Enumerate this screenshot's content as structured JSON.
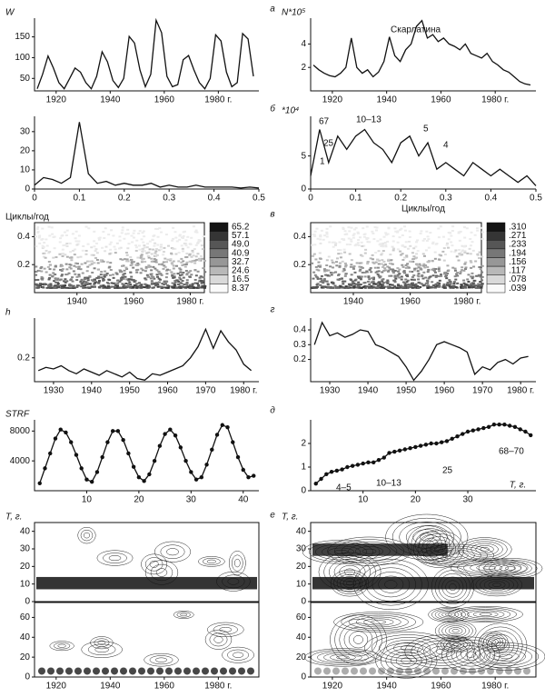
{
  "panel_labels": [
    "а",
    "б",
    "в",
    "г",
    "д",
    "е"
  ],
  "chart_data": [
    {
      "type": "line",
      "ylabel": "W",
      "x": [
        1913,
        1915,
        1917,
        1919,
        1921,
        1923,
        1925,
        1927,
        1929,
        1931,
        1933,
        1935,
        1937,
        1939,
        1941,
        1943,
        1945,
        1947,
        1949,
        1951,
        1953,
        1955,
        1957,
        1959,
        1961,
        1963,
        1965,
        1967,
        1969,
        1971,
        1973,
        1975,
        1977,
        1979,
        1981,
        1983,
        1985,
        1987,
        1989,
        1991,
        1993
      ],
      "values": [
        25,
        60,
        104,
        75,
        40,
        25,
        50,
        75,
        65,
        40,
        25,
        55,
        114,
        90,
        45,
        28,
        50,
        151,
        135,
        70,
        30,
        60,
        190,
        160,
        55,
        30,
        35,
        95,
        105,
        70,
        40,
        25,
        50,
        155,
        140,
        65,
        30,
        40,
        158,
        145,
        55
      ],
      "xlim": [
        1912,
        1995
      ],
      "ylim": [
        20,
        195
      ],
      "xticks": [
        1920,
        1940,
        1960,
        {
          "value": 1980,
          "label": "1980 г."
        }
      ],
      "yticks": [
        50,
        100,
        150
      ],
      "color": "#111"
    },
    {
      "type": "line",
      "ylabel": "N*10⁵",
      "title": "Скарлатина",
      "x": [
        1913,
        1915,
        1917,
        1919,
        1921,
        1923,
        1925,
        1927,
        1929,
        1931,
        1933,
        1935,
        1937,
        1939,
        1941,
        1943,
        1945,
        1947,
        1949,
        1951,
        1953,
        1955,
        1957,
        1959,
        1961,
        1963,
        1965,
        1967,
        1969,
        1971,
        1973,
        1975,
        1977,
        1979,
        1981,
        1983,
        1985,
        1987,
        1989,
        1991,
        1993
      ],
      "values": [
        2.2,
        1.8,
        1.5,
        1.3,
        1.2,
        1.5,
        2.0,
        4.5,
        2.0,
        1.5,
        1.8,
        1.2,
        1.6,
        2.5,
        4.6,
        3.0,
        2.5,
        3.5,
        4.0,
        5.5,
        6.0,
        4.5,
        4.8,
        4.2,
        4.5,
        4.0,
        3.8,
        3.5,
        4.0,
        3.2,
        3.0,
        2.8,
        3.2,
        2.5,
        2.2,
        1.8,
        1.6,
        1.2,
        0.8,
        0.6,
        0.5
      ],
      "xlim": [
        1912,
        1995
      ],
      "ylim": [
        0,
        6.2
      ],
      "xticks": [
        1920,
        1940,
        1960,
        {
          "value": 1980,
          "label": "1980 г."
        }
      ],
      "yticks": [
        2,
        4
      ],
      "color": "#111"
    },
    {
      "type": "line",
      "x": [
        0,
        0.02,
        0.04,
        0.06,
        0.08,
        0.1,
        0.12,
        0.14,
        0.16,
        0.18,
        0.2,
        0.22,
        0.24,
        0.26,
        0.28,
        0.3,
        0.32,
        0.34,
        0.36,
        0.38,
        0.4,
        0.42,
        0.44,
        0.46,
        0.48,
        0.5
      ],
      "values": [
        2,
        6,
        5,
        3,
        6,
        35,
        8,
        3,
        4,
        2,
        3,
        2,
        2,
        3,
        1,
        2,
        1,
        1,
        2,
        1,
        1,
        1,
        1,
        0.5,
        1,
        0.5
      ],
      "xlim": [
        0,
        0.5
      ],
      "ylim": [
        0,
        38
      ],
      "xticks": [
        0,
        0.1,
        0.2,
        0.3,
        0.4,
        0.5
      ],
      "yticks": [
        0,
        10,
        20,
        30
      ],
      "color": "#111"
    },
    {
      "type": "line",
      "ylabel": "*10⁴",
      "xlabel": "Циклы/год",
      "annotations": [
        "67",
        "25",
        "1",
        "10–13",
        "5",
        "4"
      ],
      "x": [
        0,
        0.02,
        0.04,
        0.06,
        0.08,
        0.1,
        0.12,
        0.14,
        0.16,
        0.18,
        0.2,
        0.22,
        0.24,
        0.26,
        0.28,
        0.3,
        0.32,
        0.34,
        0.36,
        0.38,
        0.4,
        0.42,
        0.44,
        0.46,
        0.48,
        0.5
      ],
      "values": [
        2,
        9,
        4,
        8,
        6,
        8,
        9,
        7,
        6,
        4,
        7,
        8,
        5,
        7,
        3,
        4,
        3,
        2,
        4,
        3,
        2,
        3,
        2,
        1,
        2,
        0.5
      ],
      "xlim": [
        0,
        0.5
      ],
      "ylim": [
        0,
        11
      ],
      "xticks": [
        0,
        0.1,
        0.2,
        0.3,
        0.4,
        0.5
      ],
      "yticks": [
        0,
        5
      ],
      "color": "#111"
    },
    {
      "type": "heatmap",
      "ylabel": "Циклы/год",
      "xlim": [
        1925,
        1985
      ],
      "ylim": [
        0,
        0.5
      ],
      "xticks": [
        1940,
        1960,
        {
          "value": 1980,
          "label": "1980 г."
        }
      ],
      "yticks": [
        0.2,
        0.4
      ],
      "legend_levels": [
        65.2,
        57.1,
        {
          "value": 49,
          "label": "49.0"
        },
        40.9,
        32.7,
        24.6,
        16.5,
        8.37
      ]
    },
    {
      "type": "heatmap",
      "xlim": [
        1925,
        1985
      ],
      "ylim": [
        0,
        0.5
      ],
      "xticks": [
        1940,
        1960,
        {
          "value": 1980,
          "label": "1980 г."
        }
      ],
      "yticks": [
        0.2,
        0.4
      ],
      "legend_levels": [
        {
          "value": 0.31,
          "label": ".310"
        },
        {
          "value": 0.271,
          "label": ".271"
        },
        {
          "value": 0.233,
          "label": ".233"
        },
        {
          "value": 0.194,
          "label": ".194"
        },
        {
          "value": 0.156,
          "label": ".156"
        },
        {
          "value": 0.117,
          "label": ".117"
        },
        {
          "value": 0.078,
          "label": ".078"
        },
        {
          "value": 0.039,
          "label": ".039"
        }
      ]
    },
    {
      "type": "line",
      "ylabel": "h",
      "x": [
        1926,
        1928,
        1930,
        1932,
        1934,
        1936,
        1938,
        1940,
        1942,
        1944,
        1946,
        1948,
        1950,
        1952,
        1954,
        1956,
        1958,
        1960,
        1962,
        1964,
        1966,
        1968,
        1970,
        1972,
        1974,
        1976,
        1978,
        1980,
        1982
      ],
      "values": [
        0.12,
        0.14,
        0.13,
        0.15,
        0.12,
        0.1,
        0.13,
        0.11,
        0.09,
        0.12,
        0.1,
        0.08,
        0.11,
        0.07,
        0.06,
        0.1,
        0.09,
        0.11,
        0.13,
        0.15,
        0.2,
        0.27,
        0.38,
        0.26,
        0.37,
        0.3,
        0.25,
        0.16,
        0.12
      ],
      "xlim": [
        1925,
        1984
      ],
      "ylim": [
        0.05,
        0.45
      ],
      "xticks": [
        1930,
        1940,
        1950,
        1960,
        1970,
        {
          "value": 1980,
          "label": "1980 г."
        }
      ],
      "yticks": [
        0.2
      ],
      "color": "#111"
    },
    {
      "type": "line",
      "x": [
        1926,
        1928,
        1930,
        1932,
        1934,
        1936,
        1938,
        1940,
        1942,
        1944,
        1946,
        1948,
        1950,
        1952,
        1954,
        1956,
        1958,
        1960,
        1962,
        1964,
        1966,
        1968,
        1970,
        1972,
        1974,
        1976,
        1978,
        1980,
        1982
      ],
      "values": [
        0.3,
        0.45,
        0.36,
        0.38,
        0.35,
        0.37,
        0.4,
        0.39,
        0.3,
        0.28,
        0.25,
        0.22,
        0.15,
        0.06,
        0.12,
        0.2,
        0.3,
        0.32,
        0.3,
        0.28,
        0.25,
        0.1,
        0.15,
        0.13,
        0.18,
        0.2,
        0.17,
        0.21,
        0.22
      ],
      "xlim": [
        1925,
        1984
      ],
      "ylim": [
        0.05,
        0.48
      ],
      "xticks": [
        1930,
        1940,
        1950,
        1960,
        1970,
        {
          "value": 1980,
          "label": "1980 г."
        }
      ],
      "yticks": [
        0.2,
        0.3,
        0.4
      ],
      "color": "#111"
    },
    {
      "type": "line",
      "ylabel": "STRF",
      "markers": true,
      "x": [
        1,
        2,
        3,
        4,
        5,
        6,
        7,
        8,
        9,
        10,
        11,
        12,
        13,
        14,
        15,
        16,
        17,
        18,
        19,
        20,
        21,
        22,
        23,
        24,
        25,
        26,
        27,
        28,
        29,
        30,
        31,
        32,
        33,
        34,
        35,
        36,
        37,
        38,
        39,
        40,
        41,
        42
      ],
      "values": [
        1000,
        3000,
        5000,
        7000,
        8200,
        7800,
        6500,
        4800,
        3000,
        1500,
        1200,
        2500,
        4500,
        6500,
        8000,
        8000,
        6800,
        5000,
        3200,
        1800,
        1300,
        2200,
        4000,
        6000,
        7600,
        8200,
        7400,
        5800,
        4000,
        2500,
        1500,
        1800,
        3500,
        5500,
        7500,
        8800,
        8500,
        6500,
        4500,
        2800,
        1800,
        2000
      ],
      "xlim": [
        0,
        43
      ],
      "ylim": [
        0,
        9500
      ],
      "xticks": [
        10,
        20,
        30,
        40
      ],
      "yticks": [
        4000,
        8000
      ],
      "color": "#111"
    },
    {
      "type": "line",
      "xlabel": "T, г.",
      "markers": true,
      "annotations": [
        "4–5",
        "10–13",
        "25",
        "68–70"
      ],
      "x": [
        1,
        2,
        3,
        4,
        5,
        6,
        7,
        8,
        9,
        10,
        11,
        12,
        13,
        14,
        15,
        16,
        17,
        18,
        19,
        20,
        21,
        22,
        23,
        24,
        25,
        26,
        27,
        28,
        29,
        30,
        31,
        32,
        33,
        34,
        35,
        36,
        37,
        38,
        39,
        40,
        41,
        42
      ],
      "values": [
        0.3,
        0.5,
        0.7,
        0.8,
        0.85,
        0.9,
        1.0,
        1.05,
        1.1,
        1.15,
        1.2,
        1.2,
        1.3,
        1.4,
        1.6,
        1.65,
        1.7,
        1.75,
        1.8,
        1.85,
        1.9,
        1.95,
        2.0,
        2.0,
        2.05,
        2.1,
        2.2,
        2.3,
        2.4,
        2.5,
        2.55,
        2.6,
        2.65,
        2.7,
        2.8,
        2.8,
        2.8,
        2.75,
        2.7,
        2.6,
        2.5,
        2.35
      ],
      "xlim": [
        0,
        43
      ],
      "ylim": [
        0,
        3
      ],
      "xticks": [
        10,
        20,
        30
      ],
      "yticks": [
        0,
        1,
        2
      ],
      "color": "#111"
    },
    {
      "type": "contour",
      "ylabel": "T, г.",
      "xlim": [
        1912,
        1995
      ],
      "ylim": [
        0,
        45
      ],
      "yticks": [
        0,
        10,
        20,
        30,
        40
      ]
    },
    {
      "type": "contour",
      "xlim": [
        1912,
        1995
      ],
      "ylim": [
        0,
        75
      ],
      "yticks": [
        0,
        20,
        40,
        60
      ],
      "xticks": [
        1920,
        1940,
        1960,
        {
          "value": 1980,
          "label": "1980 г."
        }
      ]
    },
    {
      "type": "contour",
      "ylabel": "T, г.",
      "xlim": [
        1912,
        1995
      ],
      "ylim": [
        0,
        45
      ],
      "yticks": [
        0,
        10,
        20,
        30,
        40
      ]
    },
    {
      "type": "contour",
      "xlim": [
        1912,
        1995
      ],
      "ylim": [
        0,
        75
      ],
      "yticks": [
        0,
        20,
        40,
        60
      ],
      "xticks": [
        1920,
        1940,
        1960,
        {
          "value": 1980,
          "label": "1980 г."
        }
      ]
    }
  ]
}
